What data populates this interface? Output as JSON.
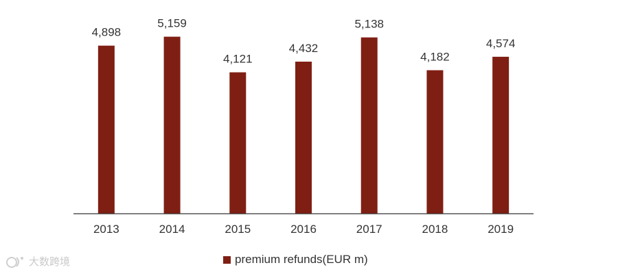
{
  "chart_data": {
    "type": "bar",
    "categories": [
      "2013",
      "2014",
      "2015",
      "2016",
      "2017",
      "2018",
      "2019"
    ],
    "series": [
      {
        "name": "premium refunds(EUR m)",
        "values": [
          4898,
          5159,
          4121,
          4432,
          5138,
          4182,
          4574
        ],
        "value_labels": [
          "4,898",
          "5,159",
          "4,121",
          "4,432",
          "5,138",
          "4,182",
          "4,574"
        ]
      }
    ],
    "title": "",
    "xlabel": "",
    "ylabel": "",
    "ylim": [
      0,
      5350
    ],
    "grid": false,
    "legend_position": "bottom"
  },
  "colors": {
    "bar": "#7f1f14",
    "axis": "#333333"
  },
  "watermark": {
    "text": "大数跨境",
    "icon": "watermark-logo-icon"
  }
}
